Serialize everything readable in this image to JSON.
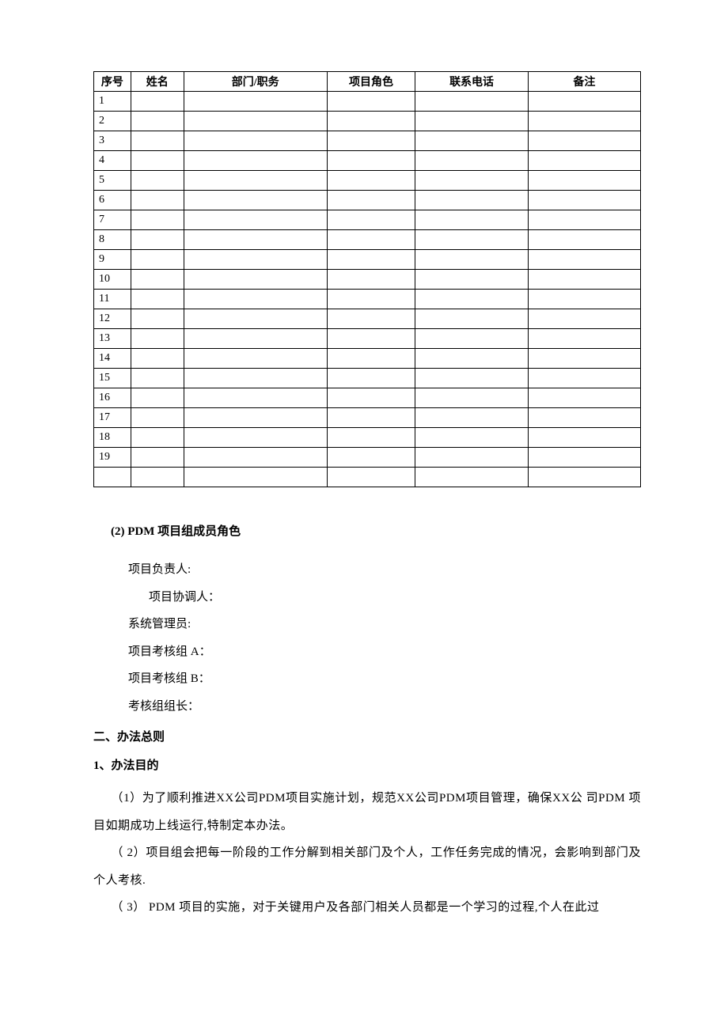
{
  "table": {
    "columns": [
      "序号",
      "姓名",
      "部门/职务",
      "项目角色",
      "联系电话",
      "备注"
    ],
    "widths": [
      "col-seq",
      "col-name",
      "col-dept",
      "col-role",
      "col-phone",
      "col-note"
    ],
    "rows": [
      [
        "1",
        "",
        "",
        "",
        "",
        ""
      ],
      [
        "2",
        "",
        "",
        "",
        "",
        ""
      ],
      [
        "3",
        "",
        "",
        "",
        "",
        ""
      ],
      [
        "4",
        "",
        "",
        "",
        "",
        ""
      ],
      [
        "5",
        "",
        "",
        "",
        "",
        ""
      ],
      [
        "6",
        "",
        "",
        "",
        "",
        ""
      ],
      [
        "7",
        "",
        "",
        "",
        "",
        ""
      ],
      [
        "8",
        "",
        "",
        "",
        "",
        ""
      ],
      [
        "9",
        "",
        "",
        "",
        "",
        ""
      ],
      [
        "10",
        "",
        "",
        "",
        "",
        ""
      ],
      [
        "11",
        "",
        "",
        "",
        "",
        ""
      ],
      [
        "12",
        "",
        "",
        "",
        "",
        ""
      ],
      [
        "13",
        "",
        "",
        "",
        "",
        ""
      ],
      [
        "14",
        "",
        "",
        "",
        "",
        ""
      ],
      [
        "15",
        "",
        "",
        "",
        "",
        ""
      ],
      [
        "16",
        "",
        "",
        "",
        "",
        ""
      ],
      [
        "17",
        "",
        "",
        "",
        "",
        ""
      ],
      [
        "18",
        "",
        "",
        "",
        "",
        ""
      ],
      [
        "19",
        "",
        "",
        "",
        "",
        ""
      ],
      [
        "",
        "",
        "",
        "",
        "",
        ""
      ]
    ]
  },
  "section_sub": "(2) PDM 项目组成员角色",
  "roles": {
    "line0": "项目负责人:",
    "line1": "项目协调人：",
    "line2": "系统管理员:",
    "line3": "项目考核组 A：",
    "line4": "项目考核组 B：",
    "line5": "考核组组长："
  },
  "h1": "二、办法总则",
  "h2": "1、办法目的",
  "paras": {
    "p1": "（1）为了顺利推进XX公司PDM项目实施计划，规范XX公司PDM项目管理，确保XX公 司PDM 项目如期成功上线运行,特制定本办法。",
    "p2": "（ 2）项目组会把每一阶段的工作分解到相关部门及个人，工作任务完成的情况，会影响到部门及个人考核.",
    "p3": "（ 3） PDM 项目的实施，对于关键用户及各部门相关人员都是一个学习的过程,个人在此过"
  }
}
